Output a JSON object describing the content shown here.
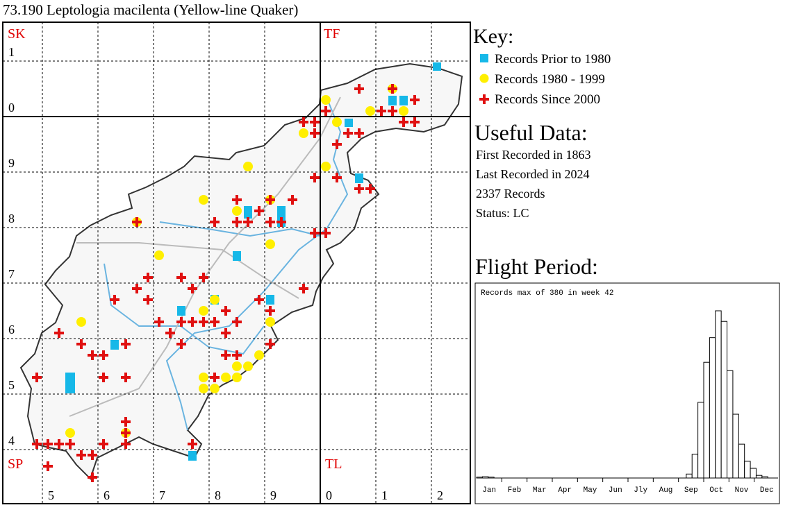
{
  "title": "73.190 Leptologia macilenta (Yellow-line Quaker)",
  "map": {
    "square_labels": [
      "SK",
      "TF",
      "SP",
      "TL"
    ],
    "row_labels": [
      "1",
      "0",
      "9",
      "8",
      "7",
      "6",
      "5",
      "4"
    ],
    "col_labels": [
      "5",
      "6",
      "7",
      "8",
      "9",
      "0",
      "1",
      "2"
    ]
  },
  "key": {
    "title": "Key:",
    "items": [
      "Records Prior to 1980",
      "Records 1980 - 1999",
      "Records Since 2000"
    ]
  },
  "useful_data": {
    "title": "Useful Data:",
    "lines": [
      "First Recorded in 1863",
      "Last Recorded in 2024",
      "2337 Records",
      "Status: LC"
    ]
  },
  "flight_period": {
    "title": "Flight Period:",
    "chart_data": {
      "type": "bar",
      "note": "Records max of 380 in week 42",
      "month_labels": [
        "Jan",
        "Feb",
        "Mar",
        "Apr",
        "May",
        "Jun",
        "Jly",
        "Aug",
        "Sep",
        "Oct",
        "Nov",
        "Dec"
      ],
      "values": [
        2,
        3,
        2,
        0,
        0,
        0,
        0,
        0,
        0,
        0,
        0,
        0,
        0,
        0,
        0,
        0,
        0,
        0,
        0,
        0,
        0,
        0,
        0,
        0,
        0,
        0,
        0,
        0,
        0,
        0,
        0,
        0,
        0,
        0,
        0,
        0,
        9,
        54,
        172,
        263,
        319,
        380,
        356,
        244,
        145,
        77,
        38,
        22,
        6,
        3,
        0,
        0
      ],
      "ylim": [
        0,
        380
      ]
    }
  }
}
